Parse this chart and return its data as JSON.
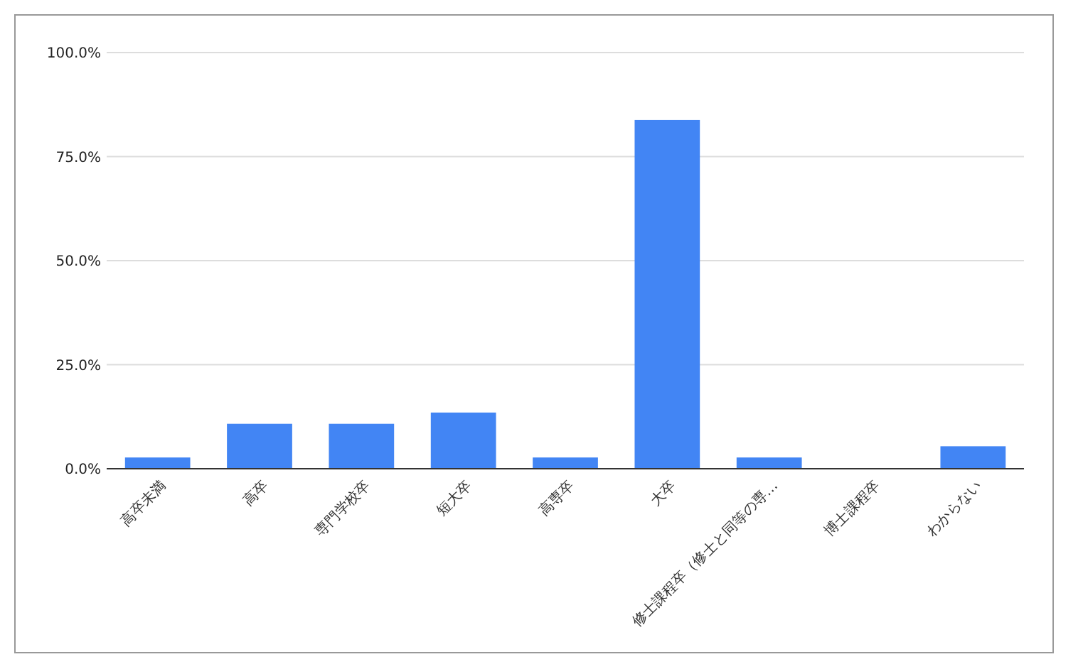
{
  "chart_data": {
    "type": "bar",
    "categories": [
      "高卒未満",
      "高卒",
      "専門学校卒",
      "短大卒",
      "高専卒",
      "大卒",
      "修士課程卒（修士と同等の専…",
      "博士課程卒",
      "わからない"
    ],
    "values": [
      2.7,
      10.8,
      10.8,
      13.5,
      2.7,
      83.8,
      2.7,
      0,
      5.4
    ],
    "color": "#4285f4",
    "ylim": [
      0,
      100
    ],
    "yticks": [
      {
        "value": 0,
        "label": "0.0%"
      },
      {
        "value": 25,
        "label": "25.0%"
      },
      {
        "value": 50,
        "label": "50.0%"
      },
      {
        "value": 75,
        "label": "75.0%"
      },
      {
        "value": 100,
        "label": "100.0%"
      }
    ],
    "grid": true
  }
}
